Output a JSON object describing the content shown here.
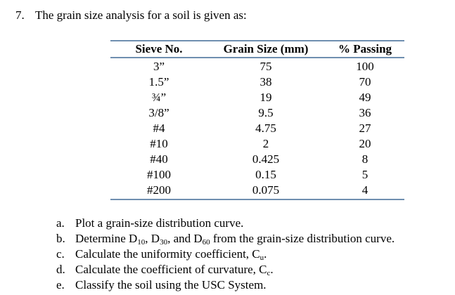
{
  "question": {
    "number": "7.",
    "text": "The grain size analysis for a soil is given as:"
  },
  "table": {
    "headers": [
      "Sieve No.",
      "Grain Size (mm)",
      "% Passing"
    ],
    "rows": [
      [
        "3”",
        75,
        100
      ],
      [
        "1.5”",
        38,
        70
      ],
      [
        "¾”",
        19,
        49
      ],
      [
        "3/8”",
        9.5,
        36
      ],
      [
        "#4",
        4.75,
        27
      ],
      [
        "#10",
        2,
        20
      ],
      [
        "#40",
        0.425,
        8
      ],
      [
        "#100",
        0.15,
        5
      ],
      [
        "#200",
        0.075,
        4
      ]
    ]
  },
  "items": [
    {
      "marker": "a.",
      "parts": [
        "Plot a grain-size distribution curve."
      ]
    },
    {
      "marker": "b.",
      "parts": [
        "Determine D",
        "10",
        ", D",
        "30",
        ", and D",
        "60",
        " from the grain-size distribution curve."
      ]
    },
    {
      "marker": "c.",
      "parts": [
        "Calculate the uniformity coefficient, C",
        "u",
        "."
      ]
    },
    {
      "marker": "d.",
      "parts": [
        "Calculate the coefficient of curvature, C",
        "c",
        "."
      ]
    },
    {
      "marker": "e.",
      "parts": [
        "Classify the soil using the USC System."
      ]
    }
  ]
}
